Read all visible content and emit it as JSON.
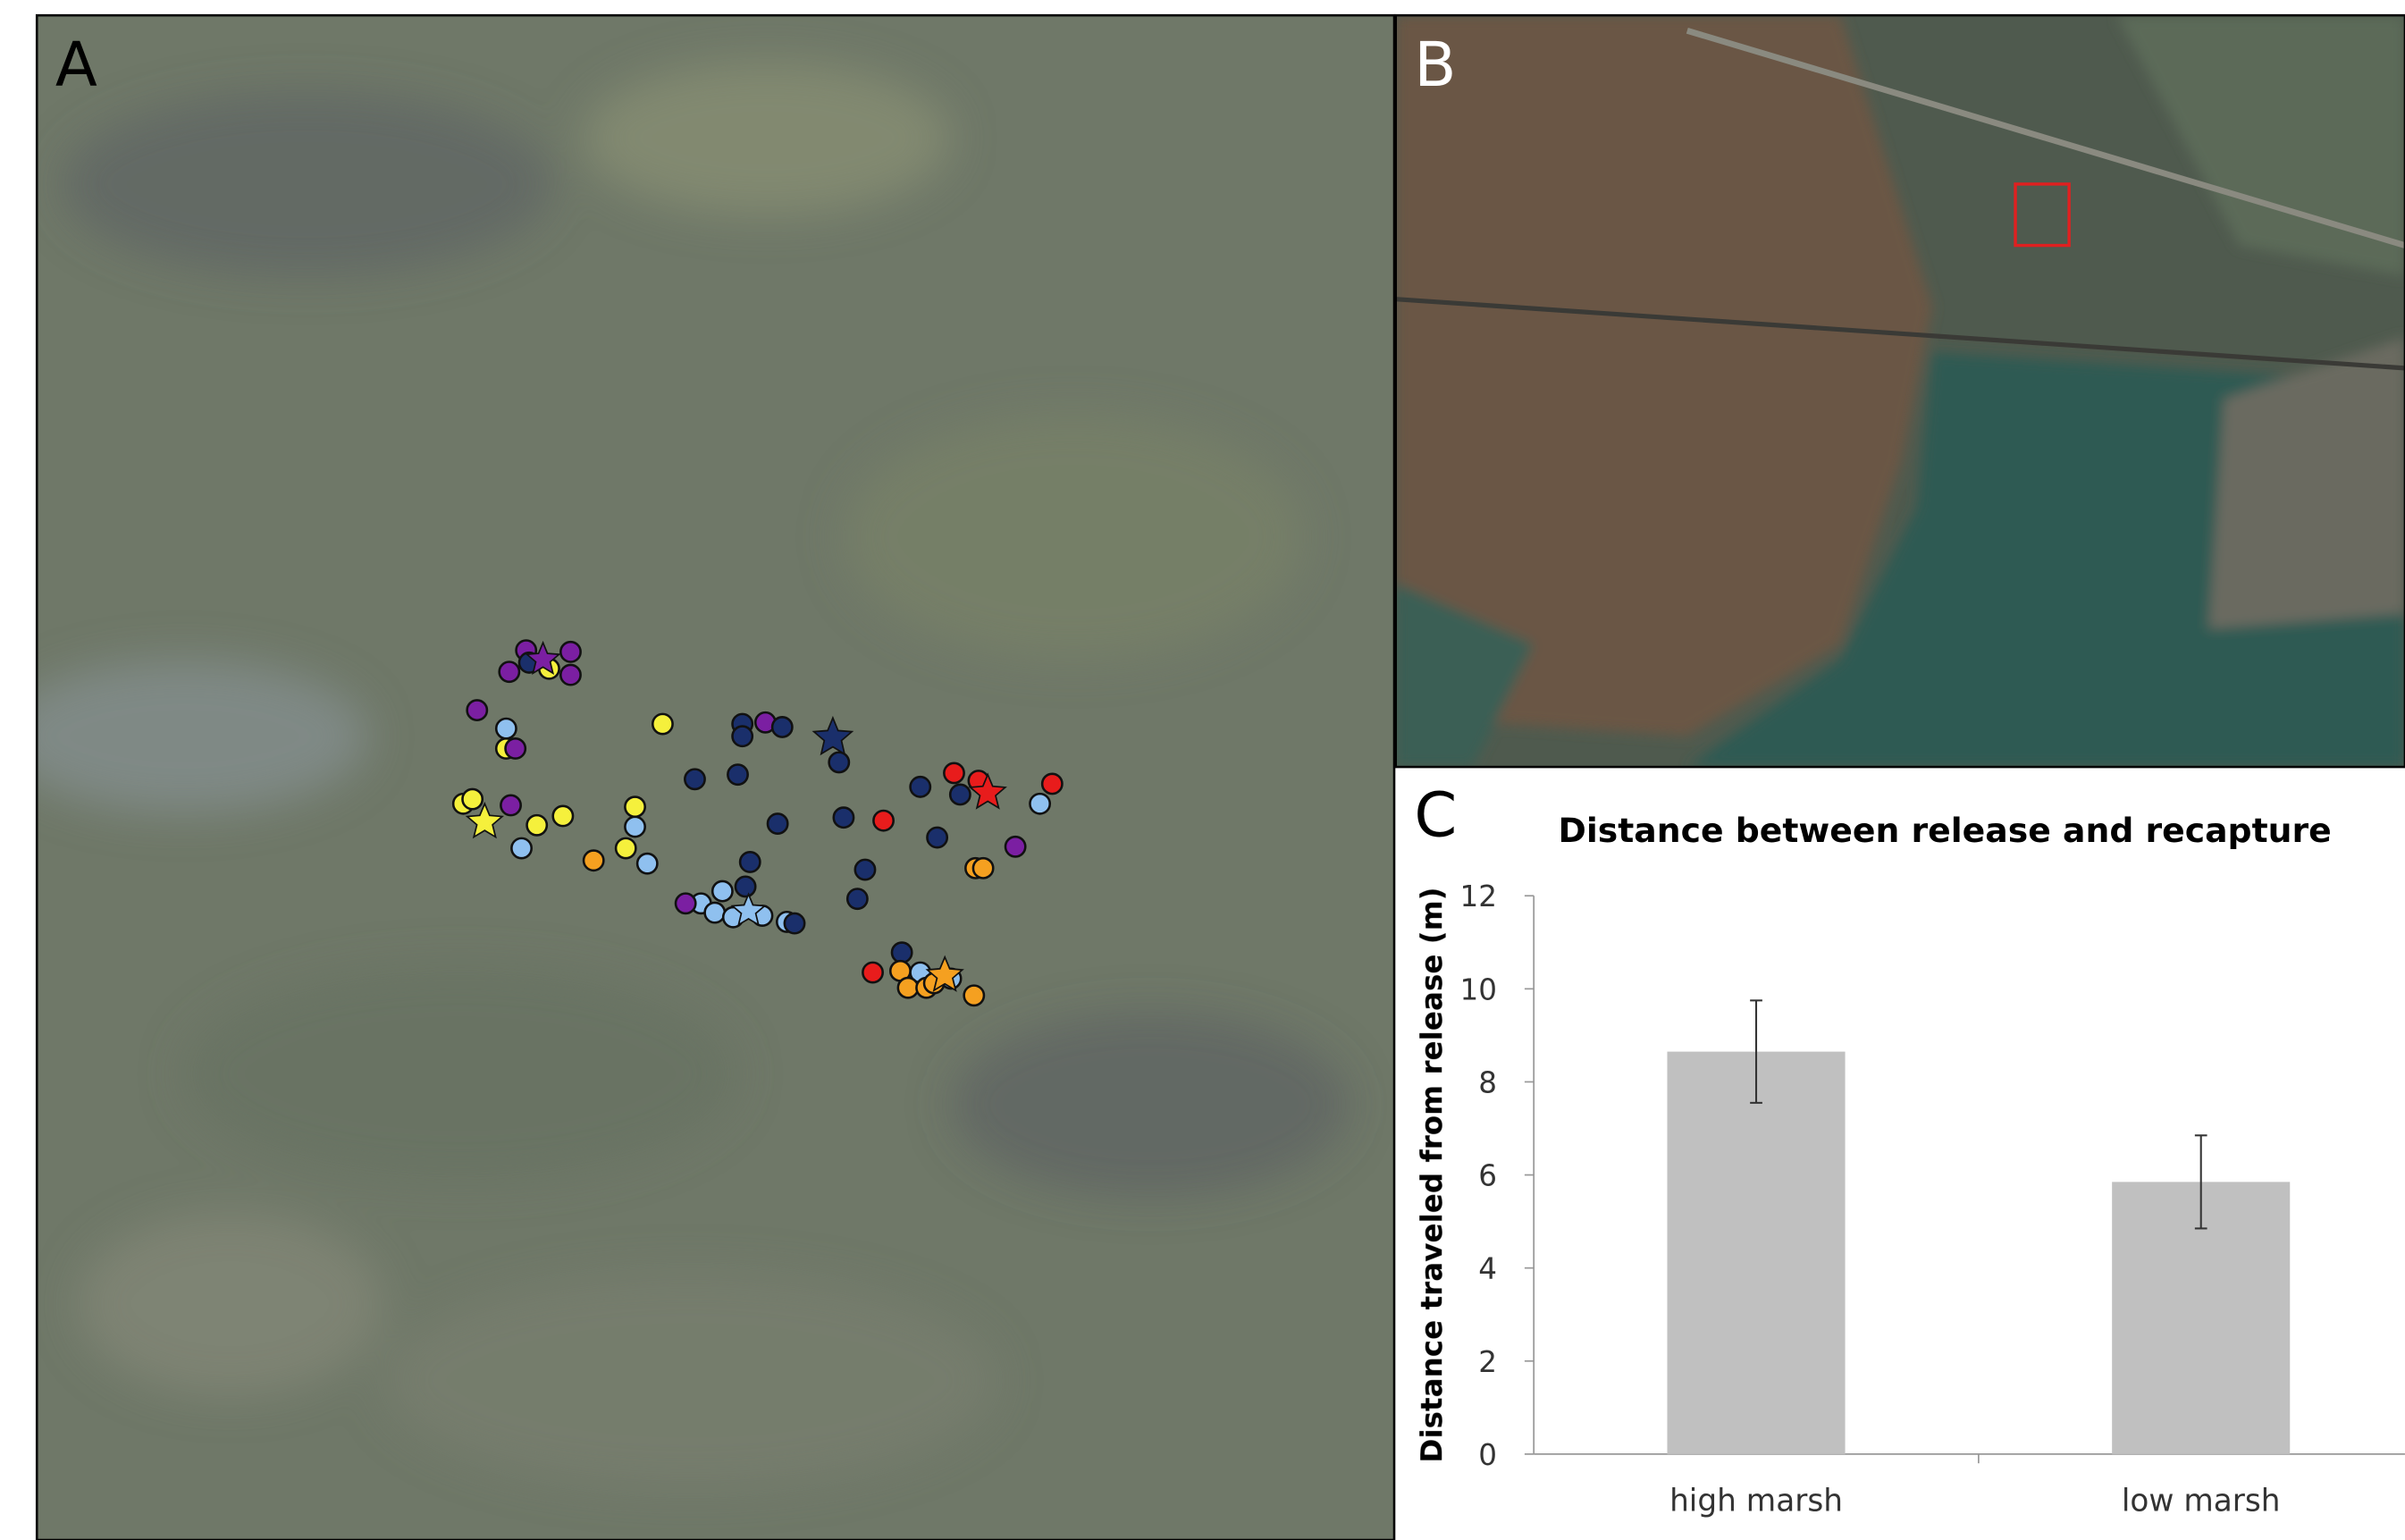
{
  "panel_labels": [
    "A",
    "B",
    "C"
  ],
  "chart_data": {
    "type": "bar",
    "title": "Distance between release and recapture",
    "y_label": "Distance traveled from release (m)",
    "categories": [
      "high marsh",
      "low marsh"
    ],
    "values": [
      8.65,
      5.85
    ],
    "errors": [
      1.1,
      1.0
    ],
    "color": "#c0c0c0",
    "ylim": [
      0,
      12
    ],
    "yticks": [
      0,
      2,
      4,
      6,
      8,
      10,
      12
    ]
  }
}
